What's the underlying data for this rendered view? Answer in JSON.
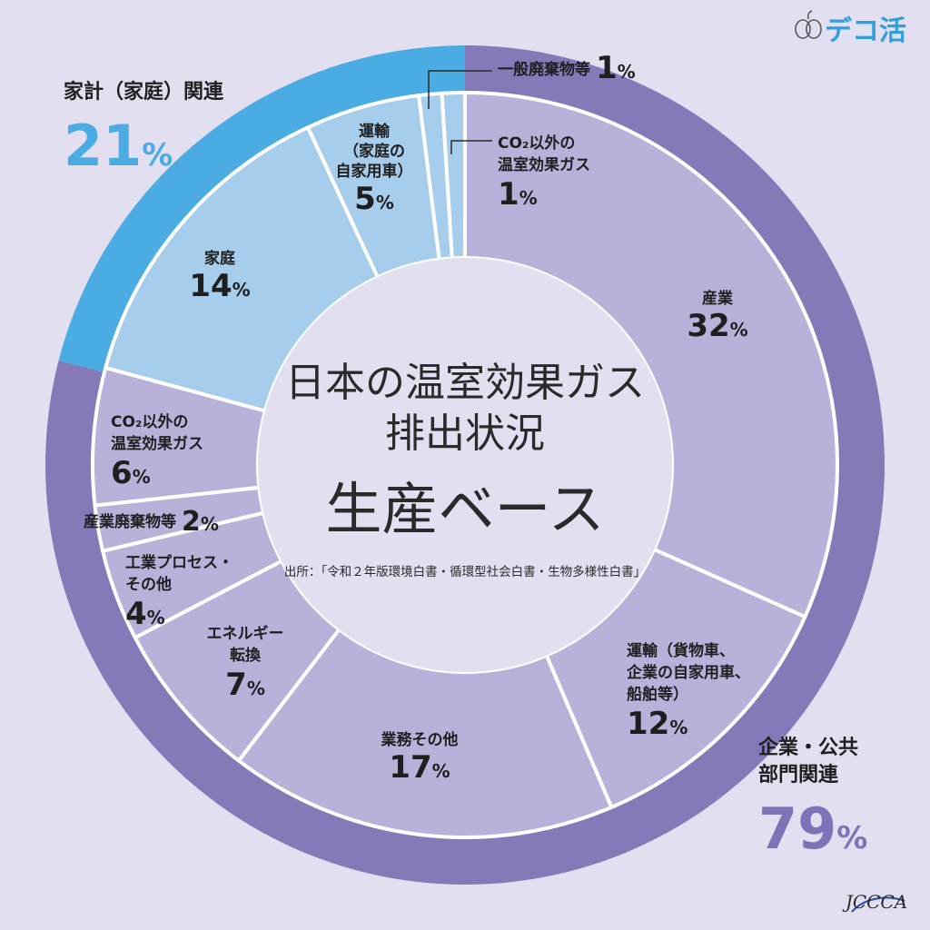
{
  "brand": {
    "logo_text": "デコ活",
    "footer_logo_text": "JCCCA"
  },
  "chart_data": {
    "type": "pie",
    "variant": "two-level donut",
    "center_title": [
      "日本の温室効果ガス",
      "排出状況"
    ],
    "center_subtitle": "生産ベース",
    "source": "出所：「令和２年版環境白書・循環型社会白書・生物多様性白書」",
    "outer": [
      {
        "name_lines": [
          "企業・公共",
          "部門関連"
        ],
        "value": 79,
        "color": "#8679b8",
        "text_color": "#7f73b8"
      },
      {
        "name_lines": [
          "家計（家庭）関連"
        ],
        "value": 21,
        "color": "#4aace2",
        "text_color": "#4aace2"
      }
    ],
    "inner": [
      {
        "name_lines": [
          "産業"
        ],
        "value": 32,
        "group": "企業・公共部門関連",
        "color": "#b8b2da"
      },
      {
        "name_lines": [
          "運輸（貨物車、",
          "企業の自家用車、",
          "船舶等）"
        ],
        "value": 12,
        "group": "企業・公共部門関連",
        "color": "#b8b2da"
      },
      {
        "name_lines": [
          "業務その他"
        ],
        "value": 17,
        "group": "企業・公共部門関連",
        "color": "#b8b2da"
      },
      {
        "name_lines": [
          "エネルギー",
          "転換"
        ],
        "value": 7,
        "group": "企業・公共部門関連",
        "color": "#b8b2da"
      },
      {
        "name_lines": [
          "工業プロセス・",
          "その他"
        ],
        "value": 4,
        "group": "企業・公共部門関連",
        "color": "#b8b2da"
      },
      {
        "name_lines": [
          "産業廃棄物等"
        ],
        "value": 2,
        "group": "企業・公共部門関連",
        "color": "#b8b2da"
      },
      {
        "name_lines": [
          "CO₂以外の",
          "温室効果ガス"
        ],
        "value": 6,
        "group": "企業・公共部門関連",
        "color": "#b8b2da"
      },
      {
        "name_lines": [
          "家庭"
        ],
        "value": 14,
        "group": "家計（家庭）関連",
        "color": "#a6cdec"
      },
      {
        "name_lines": [
          "運輸",
          "（家庭の",
          "自家用車）"
        ],
        "value": 5,
        "group": "家計（家庭）関連",
        "color": "#a6cdec"
      },
      {
        "name_lines": [
          "一般廃棄物等"
        ],
        "value": 1,
        "group": "家計（家庭）関連",
        "color": "#a6cdec"
      },
      {
        "name_lines": [
          "CO₂以外の",
          "温室効果ガス"
        ],
        "value": 1,
        "group": "家計（家庭）関連",
        "color": "#a6cdec"
      }
    ]
  }
}
